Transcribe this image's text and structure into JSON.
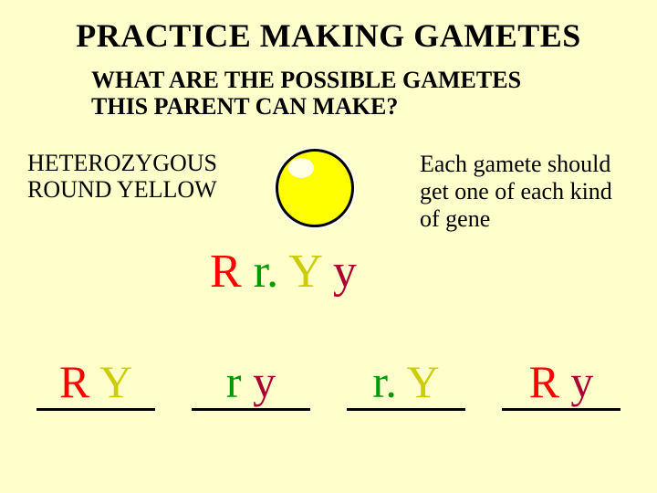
{
  "title": "PRACTICE MAKING GAMETES",
  "subtitle_line1": "WHAT ARE THE POSSIBLE GAMETES",
  "subtitle_line2": "THIS PARENT CAN MAKE?",
  "parent_label_line1": "HETEROZYGOUS",
  "parent_label_line2": "ROUND YELLOW",
  "note_line1": "Each gamete should",
  "note_line2": "get one of each kind",
  "note_line3": "of gene",
  "genotype": {
    "alleles": [
      {
        "letter": "R",
        "color": "#ff0000"
      },
      {
        "letter": " r. ",
        "color": "#009900"
      },
      {
        "letter": "Y",
        "color": "#cccc00"
      },
      {
        "letter": " y",
        "color": "#aa0033"
      }
    ]
  },
  "gametes": [
    {
      "parts": [
        {
          "t": "R ",
          "c": "#ff0000"
        },
        {
          "t": "Y",
          "c": "#cccc00"
        }
      ]
    },
    {
      "parts": [
        {
          "t": "r ",
          "c": "#009900"
        },
        {
          "t": "y",
          "c": "#aa0033"
        }
      ]
    },
    {
      "parts": [
        {
          "t": "r. ",
          "c": "#009900"
        },
        {
          "t": "Y",
          "c": "#cccc00"
        }
      ]
    },
    {
      "parts": [
        {
          "t": "R ",
          "c": "#ff0000"
        },
        {
          "t": "y",
          "c": "#aa0033"
        }
      ]
    }
  ],
  "colors": {
    "background": "#ffffcc",
    "pea_fill": "#ffff00",
    "pea_border": "#000000",
    "underline": "#000000"
  },
  "fonts": {
    "title_size": 36,
    "subtitle_size": 26,
    "label_size": 26,
    "genotype_size": 52,
    "gamete_size": 50
  }
}
